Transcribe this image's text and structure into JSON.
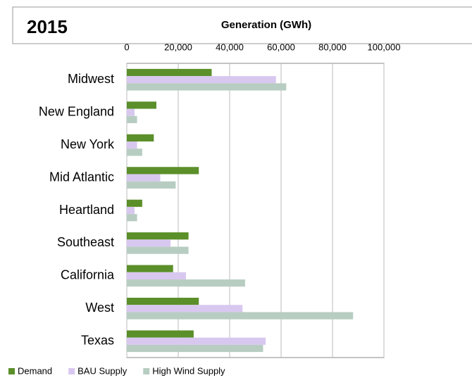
{
  "chart_data": {
    "type": "hbar",
    "title": "2015",
    "xlabel": "Generation (GWh)",
    "categories": [
      "Midwest",
      "New England",
      "New York",
      "Mid Atlantic",
      "Heartland",
      "Southeast",
      "California",
      "West",
      "Texas"
    ],
    "series": [
      {
        "name": "Demand",
        "color": "#5b8f2a",
        "values": [
          33000,
          11500,
          10500,
          28000,
          6000,
          24000,
          18000,
          28000,
          26000
        ]
      },
      {
        "name": "BAU Supply",
        "color": "#d8c8f0",
        "values": [
          58000,
          3000,
          4000,
          13000,
          3000,
          17000,
          23000,
          45000,
          54000
        ]
      },
      {
        "name": "High Wind Supply",
        "color": "#b8cdc2",
        "values": [
          62000,
          4000,
          6000,
          19000,
          4000,
          24000,
          46000,
          88000,
          53000
        ]
      }
    ],
    "xlim": [
      0,
      100000
    ],
    "xticks": [
      {
        "value": 0,
        "label": "0"
      },
      {
        "value": 20000,
        "label": "20,000"
      },
      {
        "value": 40000,
        "label": "40,000"
      },
      {
        "value": 60000,
        "label": "60,000"
      },
      {
        "value": 80000,
        "label": "80,000"
      },
      {
        "value": 100000,
        "label": "100,000"
      }
    ],
    "grid": true
  }
}
